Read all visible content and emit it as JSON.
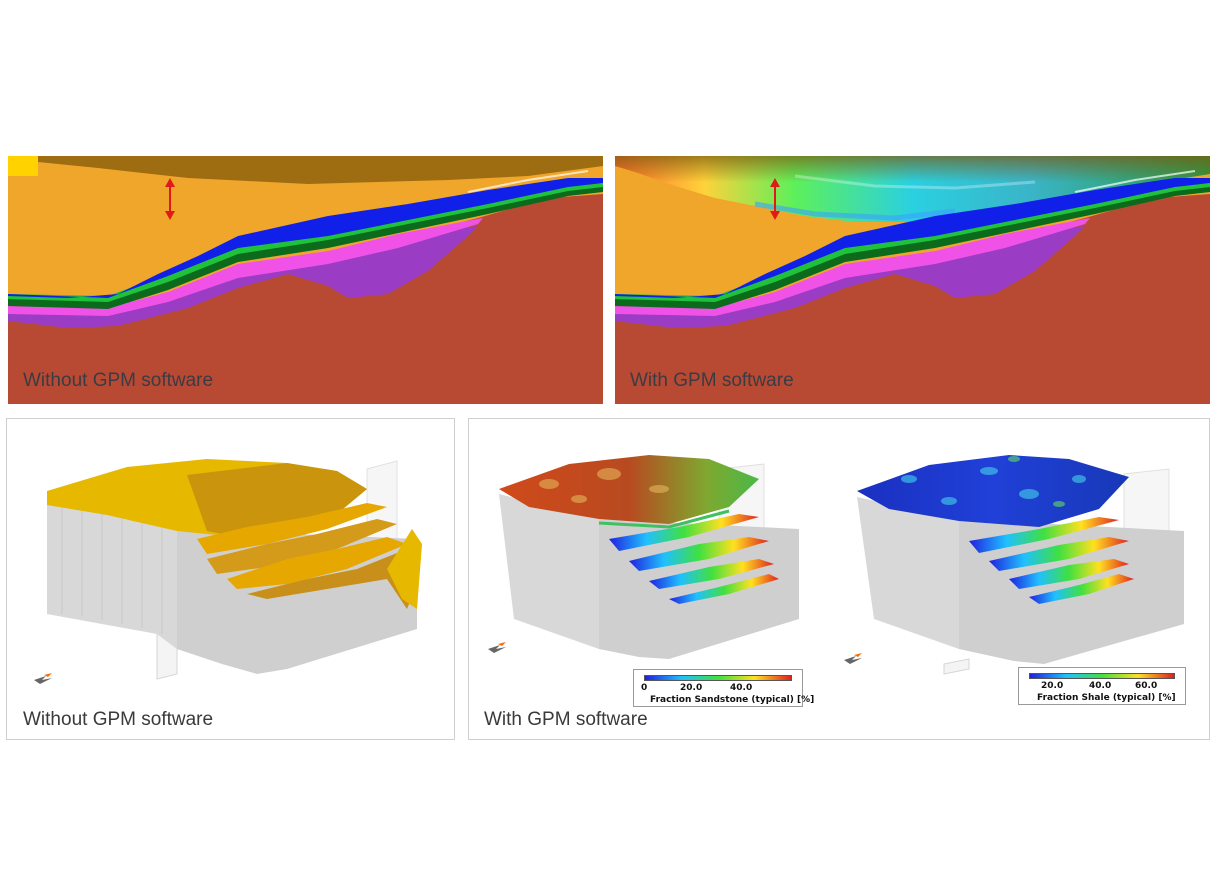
{
  "top_left": {
    "caption": "Without GPM software"
  },
  "top_right": {
    "caption": "With GPM software"
  },
  "bottom_left": {
    "caption": "Without GPM software"
  },
  "bottom_right": {
    "caption": "With GPM software",
    "legend_sandstone": {
      "ticks": [
        "0",
        "20.0",
        "40.0"
      ],
      "title": "Fraction Sandstone (typical) [%]"
    },
    "legend_shale": {
      "ticks": [
        "20.0",
        "40.0",
        "60.0"
      ],
      "title": "Fraction Shale (typical) [%]"
    }
  },
  "colors": {
    "basement": "#b84a33",
    "sediment": "#f0a62a",
    "topsoil": "#9e6d12",
    "blue_layer": "#1020e8",
    "green_layer": "#1fc23a",
    "dark_green_layer": "#0b6a1c",
    "magenta_layer": "#f052e8",
    "purple_layer": "#9a3cc4",
    "arrow": "#e01a1a",
    "block_gray": "#cfcfcf",
    "yellow_surface": "#e6b800"
  }
}
